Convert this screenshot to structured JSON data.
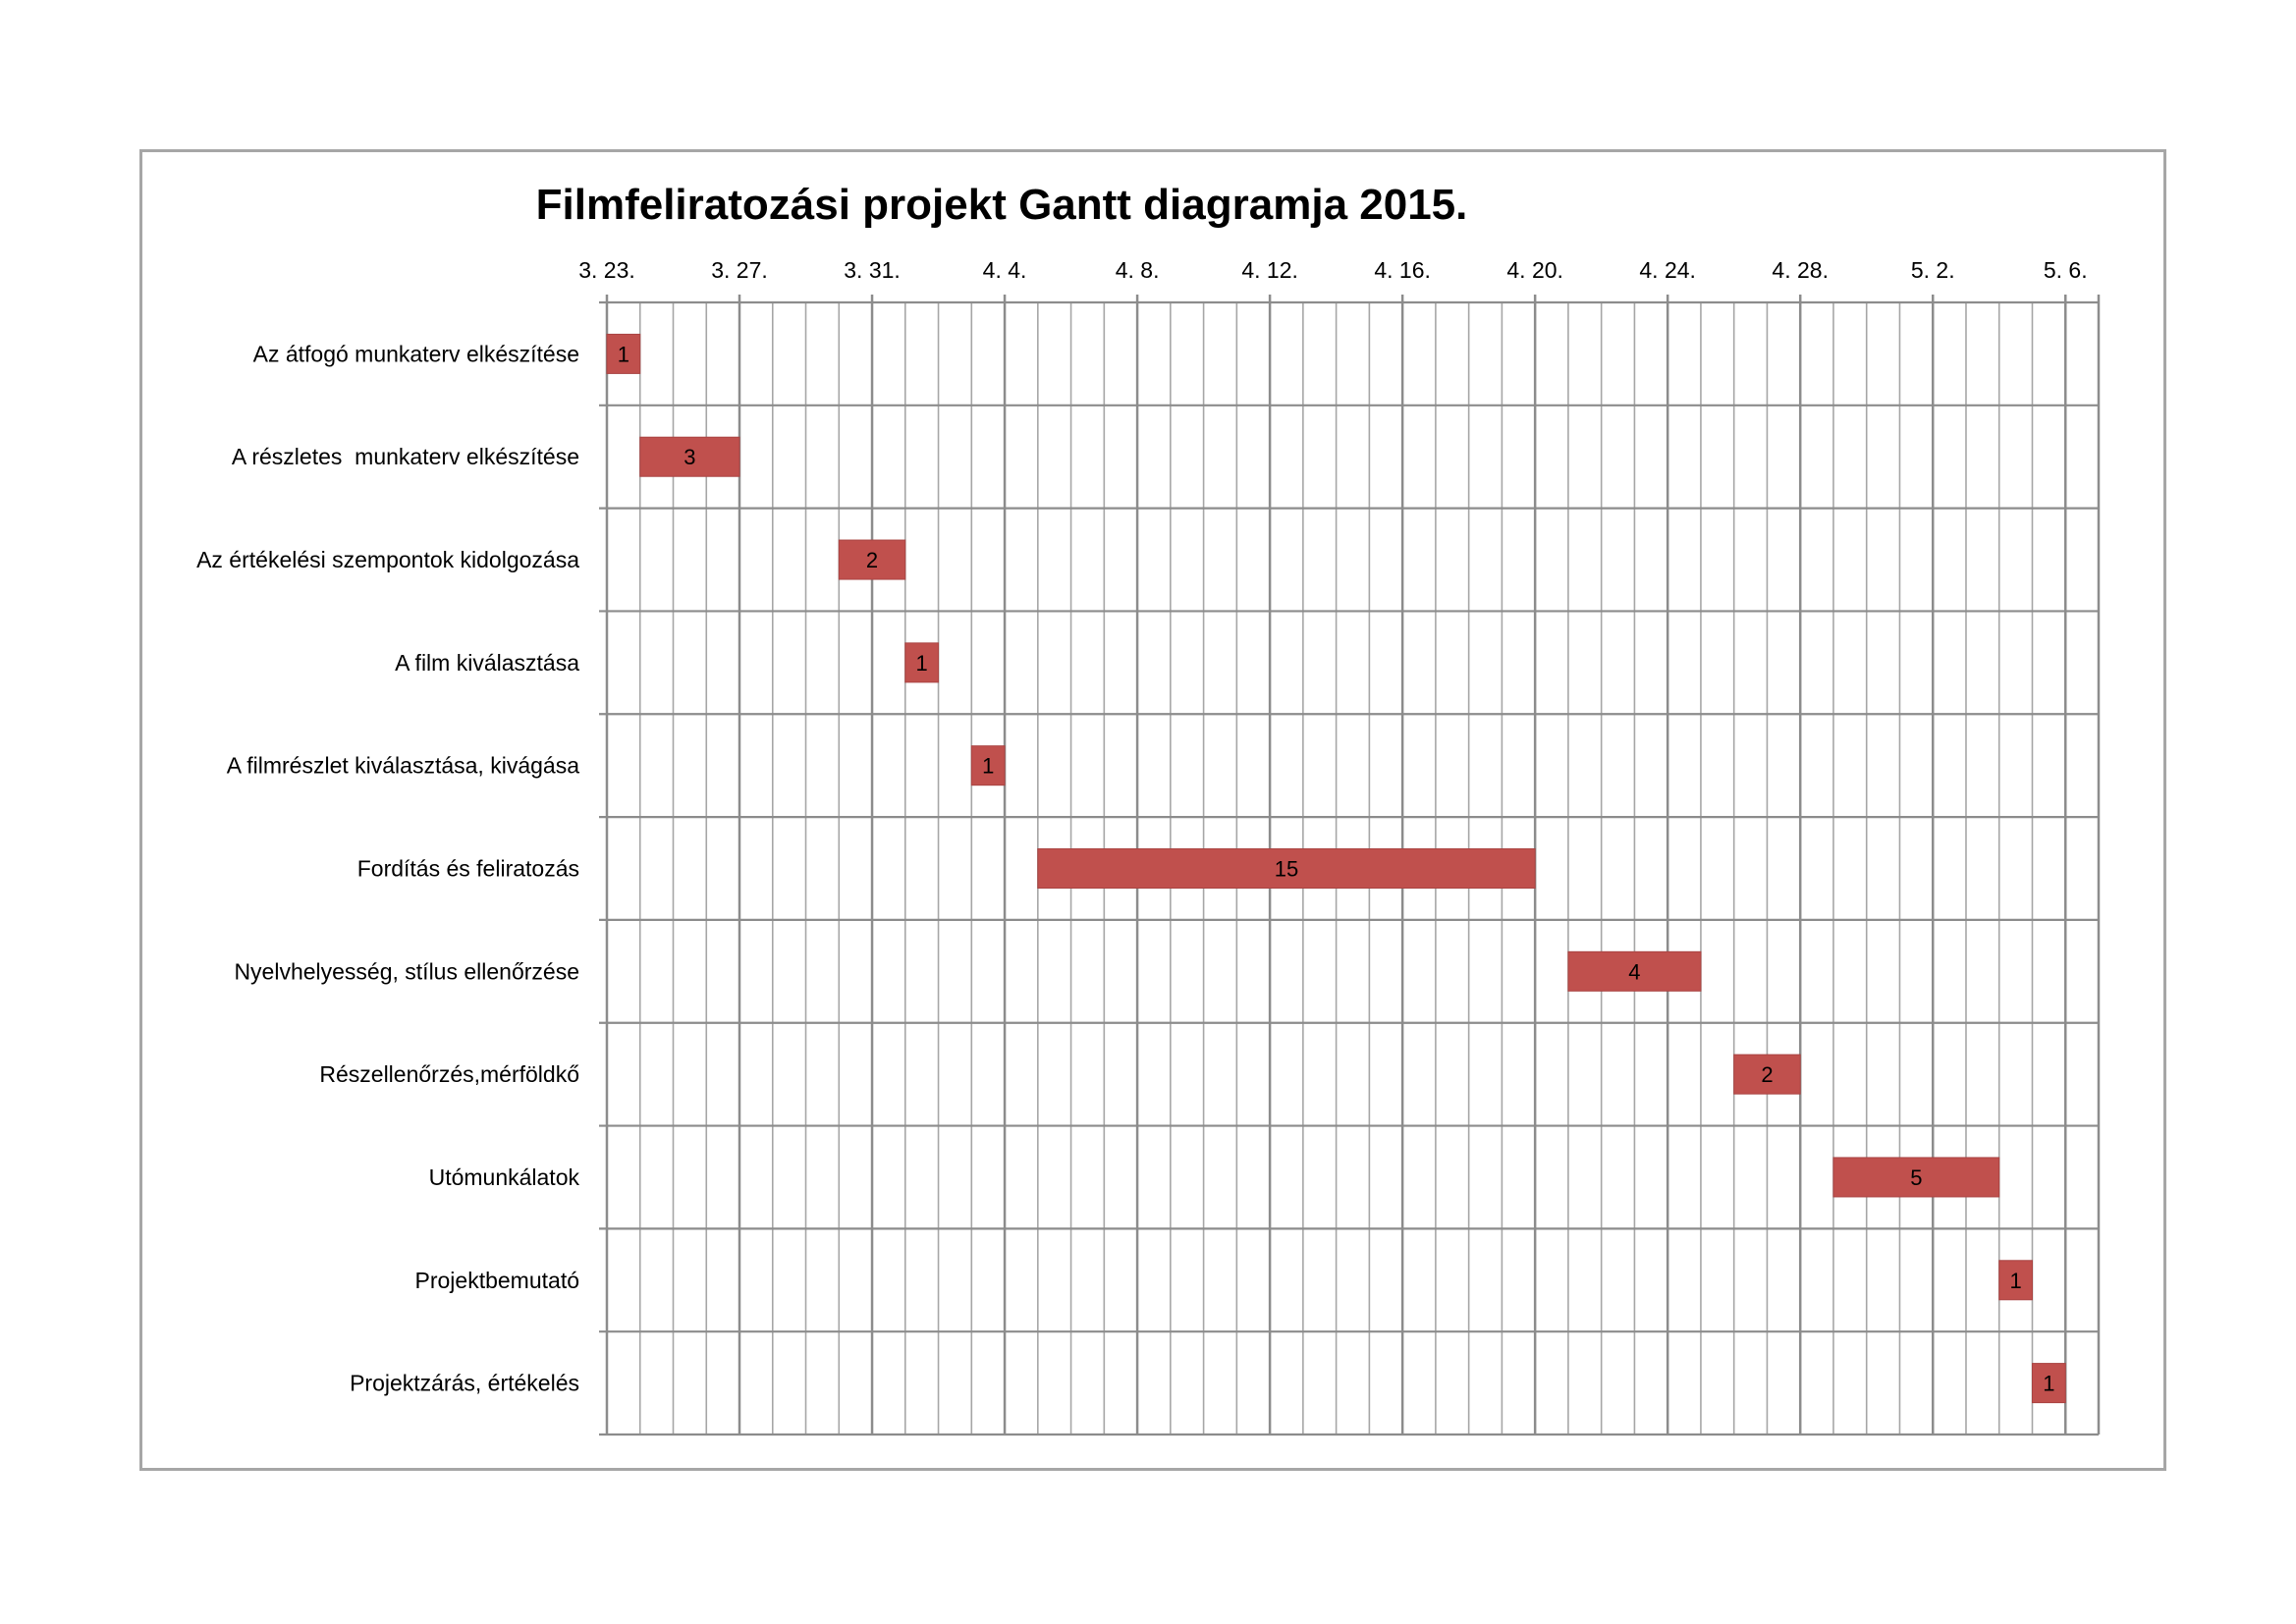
{
  "chart_data": {
    "type": "bar",
    "orientation": "horizontal-gantt",
    "title": "Filmfeliratozási projekt Gantt diagramja 2015.",
    "start_date": "2015-03-23",
    "xlim": [
      "2015-03-23",
      "2015-05-07"
    ],
    "x_ticks": [
      {
        "date": "2015-03-23",
        "label": "3. 23."
      },
      {
        "date": "2015-03-27",
        "label": "3. 27."
      },
      {
        "date": "2015-03-31",
        "label": "3. 31."
      },
      {
        "date": "2015-04-04",
        "label": "4. 4."
      },
      {
        "date": "2015-04-08",
        "label": "4. 8."
      },
      {
        "date": "2015-04-12",
        "label": "4. 12."
      },
      {
        "date": "2015-04-16",
        "label": "4. 16."
      },
      {
        "date": "2015-04-20",
        "label": "4. 20."
      },
      {
        "date": "2015-04-24",
        "label": "4. 24."
      },
      {
        "date": "2015-04-28",
        "label": "4. 28."
      },
      {
        "date": "2015-05-02",
        "label": "5. 2."
      },
      {
        "date": "2015-05-06",
        "label": "5. 6."
      }
    ],
    "bar_color": "#c0504d",
    "grid": true,
    "tasks": [
      {
        "name": "Az átfogó munkaterv elkészítése",
        "start": "2015-03-23",
        "duration": 1
      },
      {
        "name": "A részletes  munkaterv elkészítése",
        "start": "2015-03-24",
        "duration": 3
      },
      {
        "name": "Az értékelési szempontok kidolgozása",
        "start": "2015-03-30",
        "duration": 2
      },
      {
        "name": "A film kiválasztása",
        "start": "2015-04-01",
        "duration": 1
      },
      {
        "name": "A filmrészlet kiválasztása, kivágása",
        "start": "2015-04-03",
        "duration": 1
      },
      {
        "name": "Fordítás és feliratozás",
        "start": "2015-04-05",
        "duration": 15
      },
      {
        "name": "Nyelvhelyesség, stílus ellenőrzése",
        "start": "2015-04-21",
        "duration": 4
      },
      {
        "name": "Részellenőrzés,mérföldkő",
        "start": "2015-04-26",
        "duration": 2
      },
      {
        "name": "Utómunkálatok",
        "start": "2015-04-29",
        "duration": 5
      },
      {
        "name": "Projektbemutató",
        "start": "2015-05-04",
        "duration": 1
      },
      {
        "name": "Projektzárás, értékelés",
        "start": "2015-05-05",
        "duration": 1
      }
    ]
  }
}
